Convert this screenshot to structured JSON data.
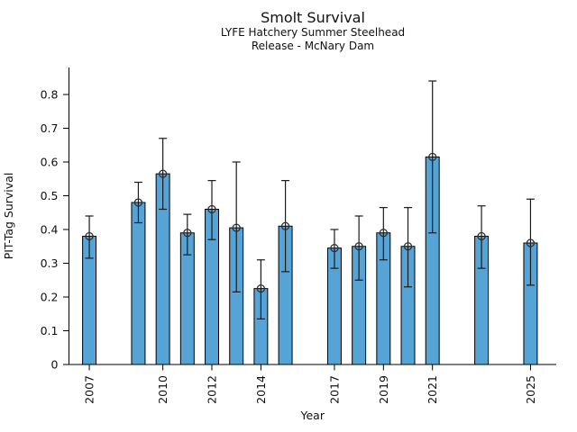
{
  "chart_data": {
    "type": "bar",
    "title": "Smolt Survival",
    "subtitle": [
      "LYFE Hatchery Summer Steelhead",
      "Release - McNary Dam"
    ],
    "xlabel": "Year",
    "ylabel": "PIT-Tag Survival",
    "xlim": [
      2006.17,
      2026.05
    ],
    "ylim": [
      0,
      0.88
    ],
    "yticks": [
      0,
      0.1,
      0.2,
      0.3,
      0.4,
      0.5,
      0.6,
      0.7,
      0.8
    ],
    "ytick_labels": [
      "0",
      "0.1",
      "0.2",
      "0.3",
      "0.4",
      "0.5",
      "0.6",
      "0.7",
      "0.8"
    ],
    "xticks": [
      2007,
      2010,
      2012,
      2014,
      2017,
      2019,
      2021,
      2025
    ],
    "grid": false,
    "legend": null,
    "error_bars": true,
    "marker": "open-circle",
    "bar_width_years": 0.55,
    "colors": {
      "bar_fill": "#56a3d6",
      "bar_edge": "#000000",
      "errorbar": "#1a1a1a",
      "marker_edge": "#2e2e2e",
      "axis": "#000000",
      "text": "#111111"
    },
    "series": [
      {
        "name": "PIT-Tag Survival",
        "points": [
          {
            "year": 2007,
            "value": 0.38,
            "err_low": 0.315,
            "err_high": 0.44
          },
          {
            "year": 2009,
            "value": 0.48,
            "err_low": 0.42,
            "err_high": 0.54
          },
          {
            "year": 2010,
            "value": 0.565,
            "err_low": 0.46,
            "err_high": 0.67
          },
          {
            "year": 2011,
            "value": 0.39,
            "err_low": 0.325,
            "err_high": 0.445
          },
          {
            "year": 2012,
            "value": 0.46,
            "err_low": 0.37,
            "err_high": 0.545
          },
          {
            "year": 2013,
            "value": 0.405,
            "err_low": 0.215,
            "err_high": 0.6
          },
          {
            "year": 2014,
            "value": 0.225,
            "err_low": 0.135,
            "err_high": 0.31
          },
          {
            "year": 2015,
            "value": 0.41,
            "err_low": 0.275,
            "err_high": 0.545
          },
          {
            "year": 2017,
            "value": 0.345,
            "err_low": 0.285,
            "err_high": 0.4
          },
          {
            "year": 2018,
            "value": 0.35,
            "err_low": 0.25,
            "err_high": 0.44
          },
          {
            "year": 2019,
            "value": 0.39,
            "err_low": 0.31,
            "err_high": 0.465
          },
          {
            "year": 2020,
            "value": 0.35,
            "err_low": 0.23,
            "err_high": 0.465
          },
          {
            "year": 2021,
            "value": 0.615,
            "err_low": 0.39,
            "err_high": 0.84
          },
          {
            "year": 2023,
            "value": 0.38,
            "err_low": 0.285,
            "err_high": 0.47
          },
          {
            "year": 2025,
            "value": 0.36,
            "err_low": 0.235,
            "err_high": 0.49
          }
        ]
      }
    ]
  }
}
